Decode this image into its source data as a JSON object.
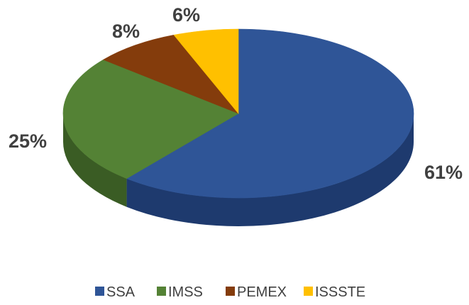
{
  "chart_data": {
    "type": "pie",
    "style": "3d",
    "title": "",
    "categories": [
      "SSA",
      "IMSS",
      "PEMEX",
      "ISSSTE"
    ],
    "values": [
      61,
      25,
      8,
      6
    ],
    "labels": [
      "61%",
      "25%",
      "8%",
      "6%"
    ],
    "colors": [
      "#2F5597",
      "#548235",
      "#843C0C",
      "#FFC000"
    ],
    "side_colors": [
      "#1E3A6E",
      "#3A5C24",
      "#5E2A08",
      "#C79500"
    ],
    "legend_position": "bottom"
  }
}
